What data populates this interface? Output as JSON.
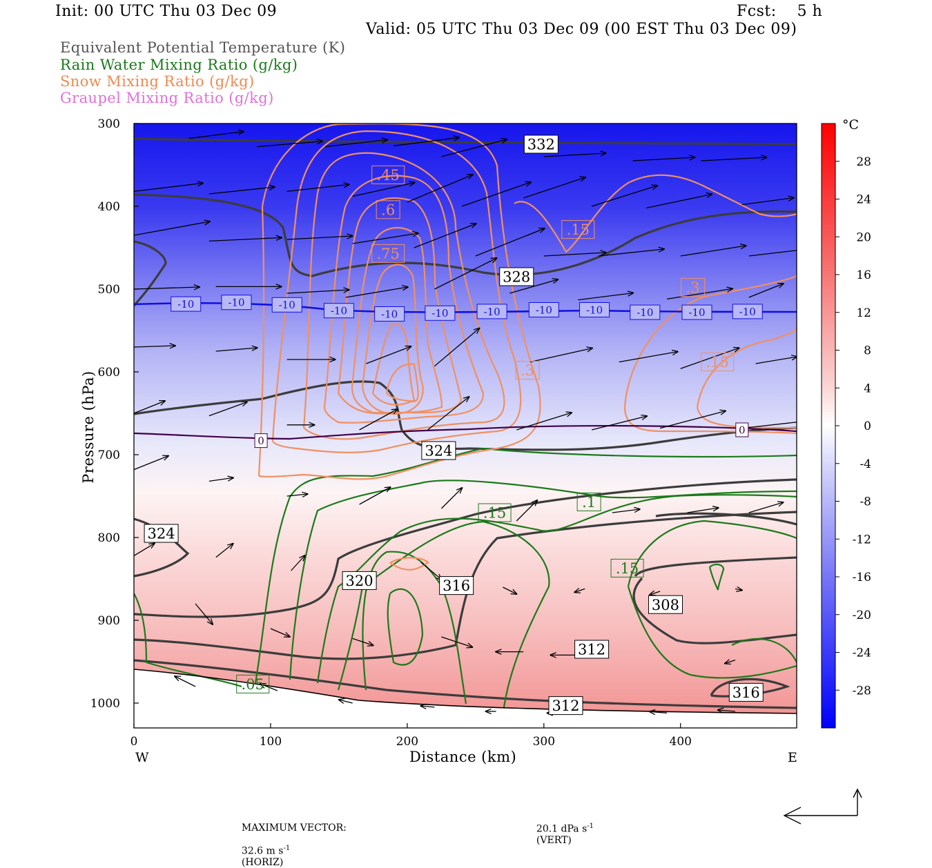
{
  "header": {
    "init": "Init: 00 UTC Thu 03 Dec 09",
    "fcst": "Fcst:    5 h",
    "valid": "Valid: 05 UTC Thu 03 Dec 09 (00 EST Thu 03 Dec 09)"
  },
  "legend": [
    {
      "text": "Equivalent Potential Temperature (K)",
      "color": "#555555"
    },
    {
      "text": "Rain Water Mixing Ratio (g/kg)",
      "color": "#1a7a1a"
    },
    {
      "text": "Snow Mixing Ratio (g/kg)",
      "color": "#f08850"
    },
    {
      "text": "Graupel Mixing Ratio (g/kg)",
      "color": "#e070d8"
    }
  ],
  "chart_data": {
    "type": "contour-cross-section",
    "xlabel": "Distance (km)",
    "ylabel": "Pressure (hPa)",
    "xlim": [
      0,
      485
    ],
    "ylim": [
      1030,
      300
    ],
    "x_ticks": [
      0,
      100,
      200,
      300,
      400
    ],
    "y_ticks": [
      300,
      400,
      500,
      600,
      700,
      800,
      900,
      1000
    ],
    "x_end_labels": {
      "left": "W",
      "right": "E"
    },
    "colorbar": {
      "unit": "°C",
      "ticks": [
        28,
        24,
        20,
        16,
        12,
        8,
        4,
        0,
        -4,
        -8,
        -12,
        -16,
        -20,
        -24,
        -28
      ],
      "range": [
        32,
        -32
      ]
    },
    "temperature_labels": [
      {
        "x": 38,
        "p": 518,
        "text": "-10"
      },
      {
        "x": 75,
        "p": 516,
        "text": "-10"
      },
      {
        "x": 112,
        "p": 519,
        "text": "-10"
      },
      {
        "x": 150,
        "p": 526,
        "text": "-10"
      },
      {
        "x": 187,
        "p": 530,
        "text": "-10"
      },
      {
        "x": 224,
        "p": 529,
        "text": "-10"
      },
      {
        "x": 262,
        "p": 527,
        "text": "-10"
      },
      {
        "x": 300,
        "p": 525,
        "text": "-10"
      },
      {
        "x": 337,
        "p": 525,
        "text": "-10"
      },
      {
        "x": 374,
        "p": 528,
        "text": "-10"
      },
      {
        "x": 412,
        "p": 528,
        "text": "-10"
      },
      {
        "x": 449,
        "p": 527,
        "text": "-10"
      },
      {
        "x": 93,
        "p": 683,
        "text": "0"
      },
      {
        "x": 445,
        "p": 670,
        "text": "0"
      }
    ],
    "theta_e_labels": [
      {
        "x": 298,
        "p": 325,
        "text": "332"
      },
      {
        "x": 280,
        "p": 485,
        "text": "328"
      },
      {
        "x": 223,
        "p": 695,
        "text": "324"
      },
      {
        "x": 20,
        "p": 795,
        "text": "324"
      },
      {
        "x": 165,
        "p": 852,
        "text": "320"
      },
      {
        "x": 236,
        "p": 858,
        "text": "316"
      },
      {
        "x": 389,
        "p": 881,
        "text": "308"
      },
      {
        "x": 335,
        "p": 935,
        "text": "312"
      },
      {
        "x": 448,
        "p": 987,
        "text": "316"
      },
      {
        "x": 316,
        "p": 1003,
        "text": "312"
      }
    ],
    "snow_labels": [
      {
        "x": 186,
        "p": 362,
        "text": ".45"
      },
      {
        "x": 186,
        "p": 404,
        "text": ".6"
      },
      {
        "x": 186,
        "p": 457,
        "text": ".75"
      },
      {
        "x": 325,
        "p": 428,
        "text": ".15"
      },
      {
        "x": 409,
        "p": 498,
        "text": ".3"
      },
      {
        "x": 288,
        "p": 598,
        "text": ".3"
      },
      {
        "x": 427,
        "p": 588,
        "text": ".15"
      }
    ],
    "rain_labels": [
      {
        "x": 264,
        "p": 770,
        "text": ".15"
      },
      {
        "x": 333,
        "p": 757,
        "text": ".1"
      },
      {
        "x": 361,
        "p": 837,
        "text": ".15"
      },
      {
        "x": 87,
        "p": 977,
        "text": ".05"
      }
    ],
    "vector_legend": {
      "label": "MAXIMUM VECTOR:",
      "horizontal": "32.6 m s",
      "horizontal_unit": "(HORIZ)",
      "vertical": "20.1 dPa s",
      "vertical_unit": "(VERT)",
      "exponent": "-1"
    }
  }
}
